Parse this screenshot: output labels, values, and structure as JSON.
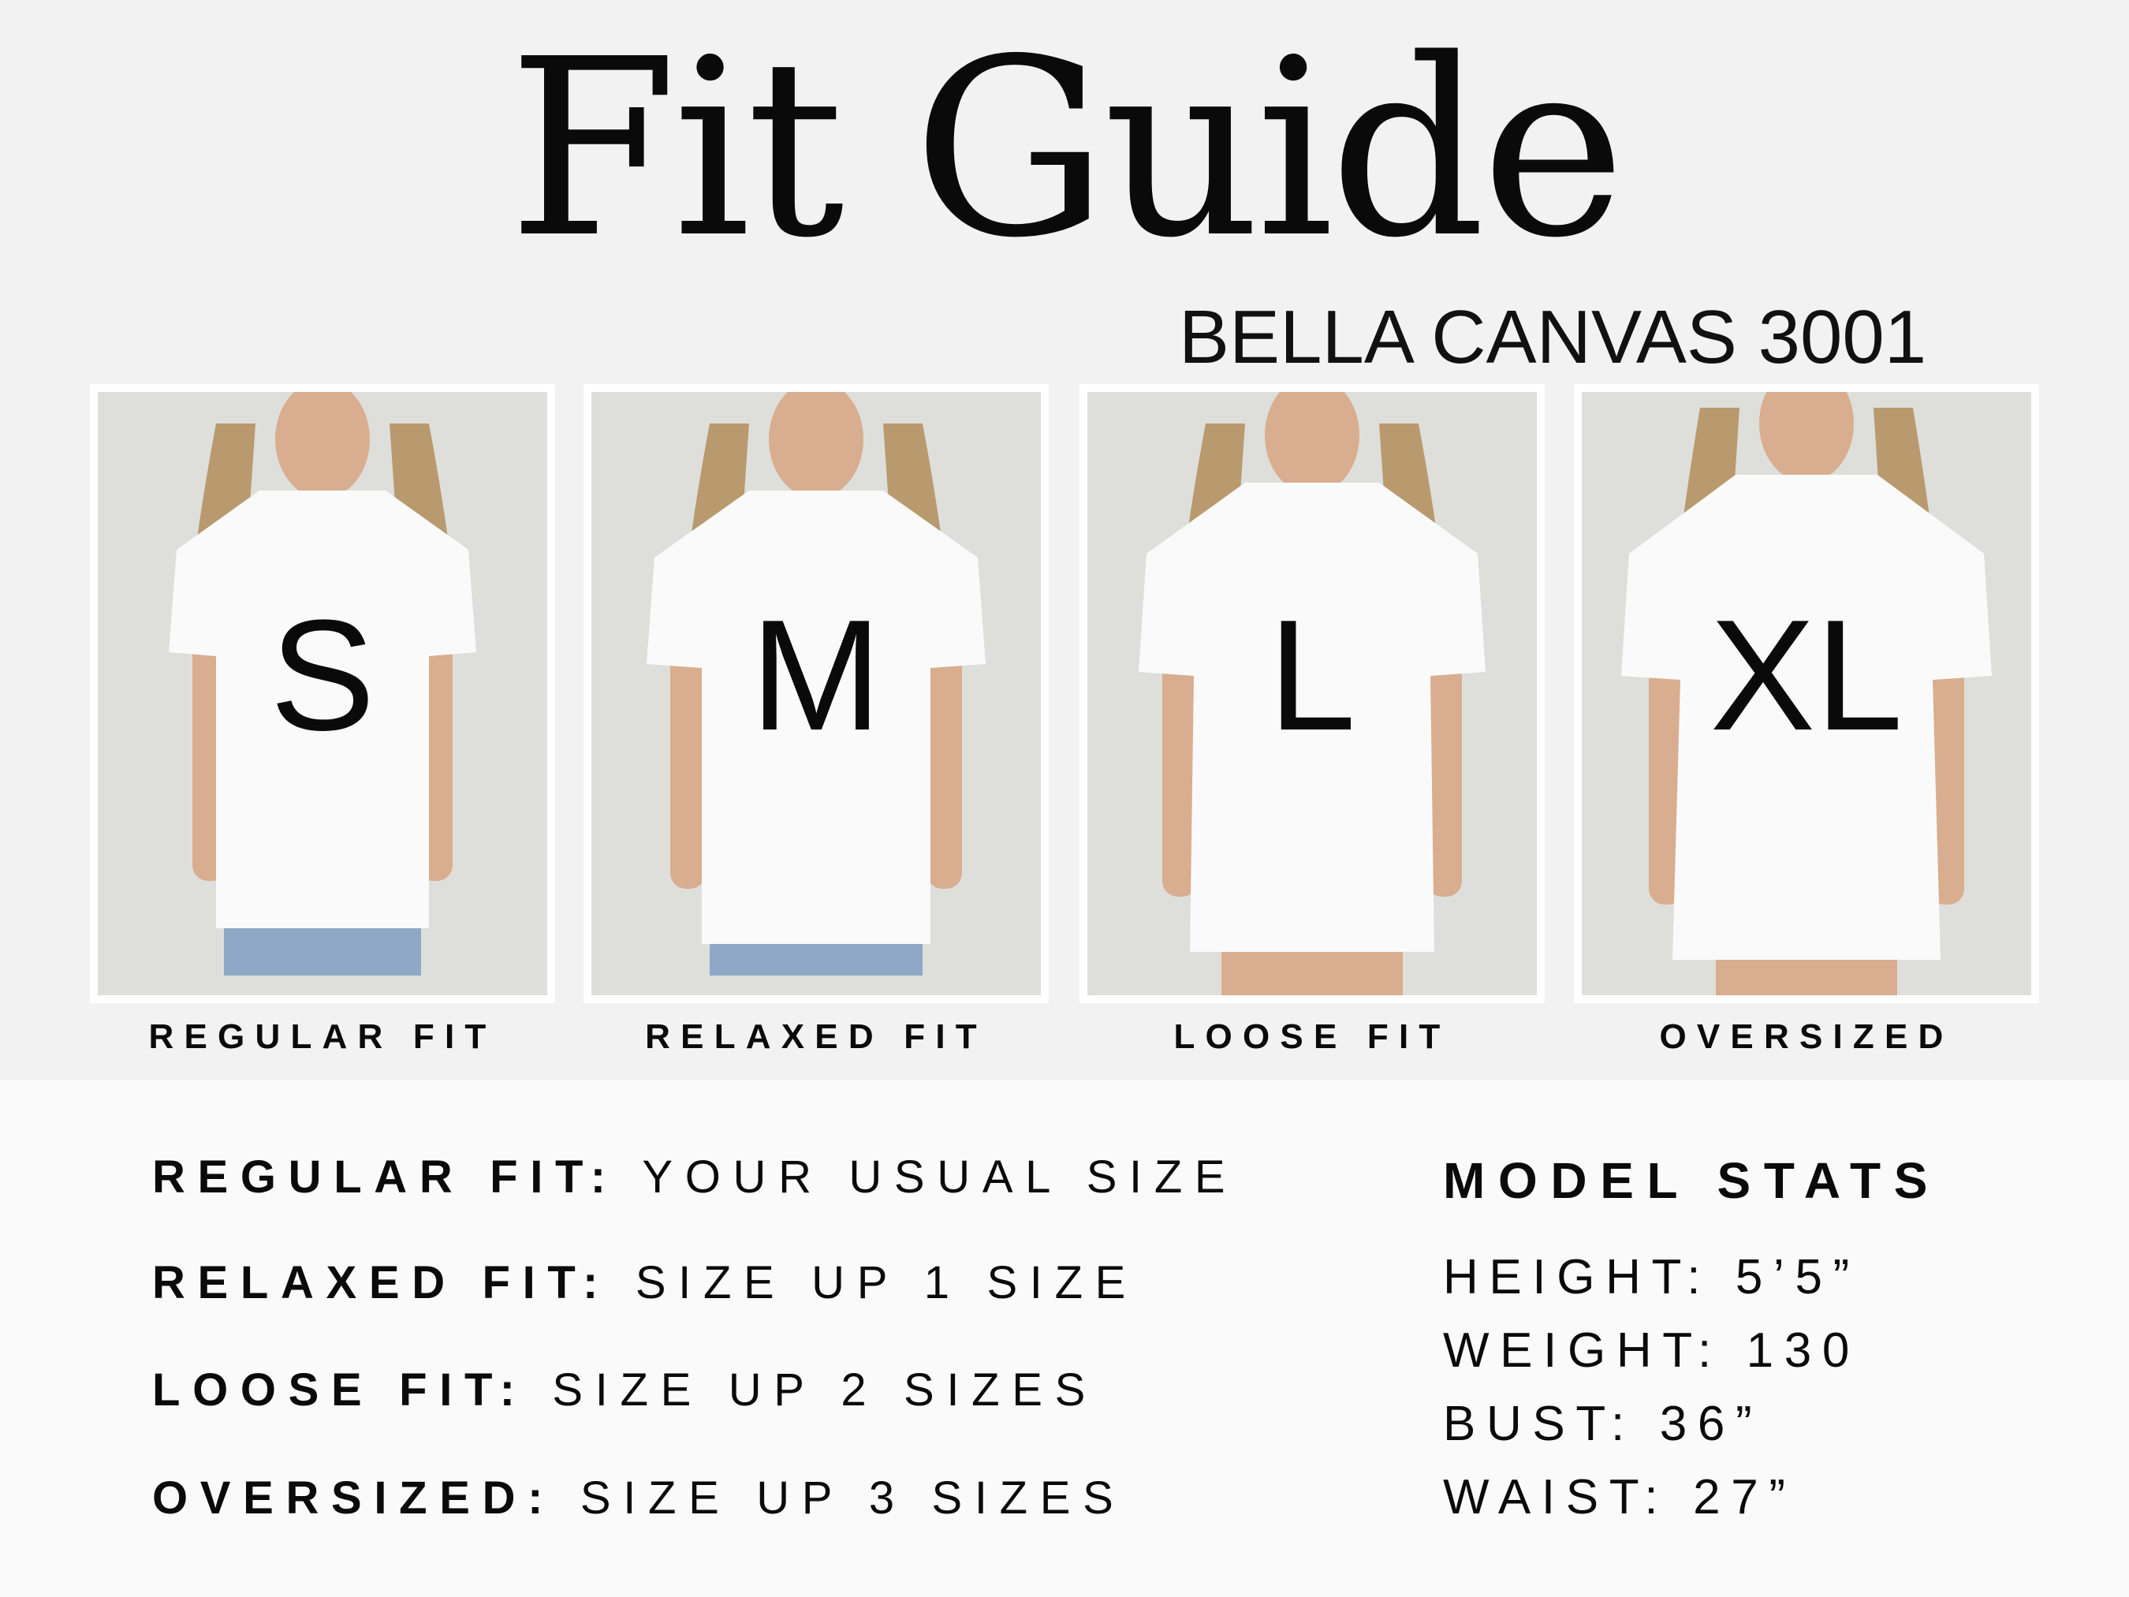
{
  "header": {
    "title": "Fit Guide",
    "subtitle": "BELLA CANVAS 3001"
  },
  "cards": [
    {
      "size": "S",
      "label": "REGULAR FIT"
    },
    {
      "size": "M",
      "label": "RELAXED FIT"
    },
    {
      "size": "L",
      "label": "LOOSE FIT"
    },
    {
      "size": "XL",
      "label": "OVERSIZED"
    }
  ],
  "fit_rules": [
    {
      "name": "REGULAR FIT:",
      "advice": "YOUR USUAL SIZE"
    },
    {
      "name": "RELAXED FIT:",
      "advice": "SIZE UP 1 SIZE"
    },
    {
      "name": "LOOSE FIT:",
      "advice": "SIZE UP 2 SIZES"
    },
    {
      "name": "OVERSIZED:",
      "advice": "SIZE UP 3 SIZES"
    }
  ],
  "model_stats": {
    "heading": "MODEL STATS",
    "items": [
      "HEIGHT: 5’5”",
      "WEIGHT: 130",
      "BUST: 36”",
      "WAIST: 27”"
    ]
  },
  "colors": {
    "top_bg": "#f2f2f2",
    "bottom_bg": "#fafafa",
    "photo_bg": "#dedfdb",
    "text": "#0a0a0a"
  }
}
